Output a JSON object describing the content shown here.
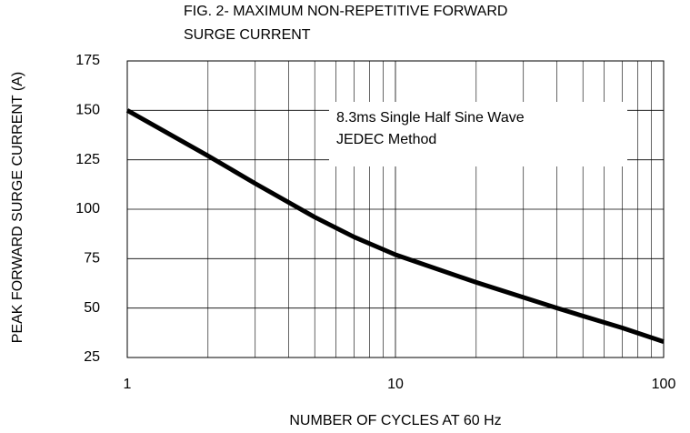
{
  "chart_data": {
    "type": "line",
    "title": [
      "FIG. 2- MAXIMUM NON-REPETITIVE FORWARD",
      "SURGE CURRENT"
    ],
    "xlabel": "NUMBER OF CYCLES AT 60 Hz",
    "ylabel": "PEAK FORWARD SURGE CURRENT (A)",
    "annotation": [
      "8.3ms Single Half Sine Wave",
      "JEDEC Method"
    ],
    "xscale": "log",
    "x": [
      1,
      2,
      3,
      5,
      7,
      10,
      20,
      40,
      70,
      100
    ],
    "series": [
      {
        "name": "Surge current",
        "color": "#000000",
        "values": [
          150,
          127,
          113,
          96,
          86,
          77,
          63,
          50,
          40,
          33
        ]
      }
    ],
    "xlim": [
      1,
      100
    ],
    "xticks": [
      1,
      10,
      100
    ],
    "ylim": [
      25,
      175
    ],
    "yticks": [
      25,
      50,
      75,
      100,
      125,
      150,
      175
    ],
    "grid": true,
    "minor_grid": true
  }
}
